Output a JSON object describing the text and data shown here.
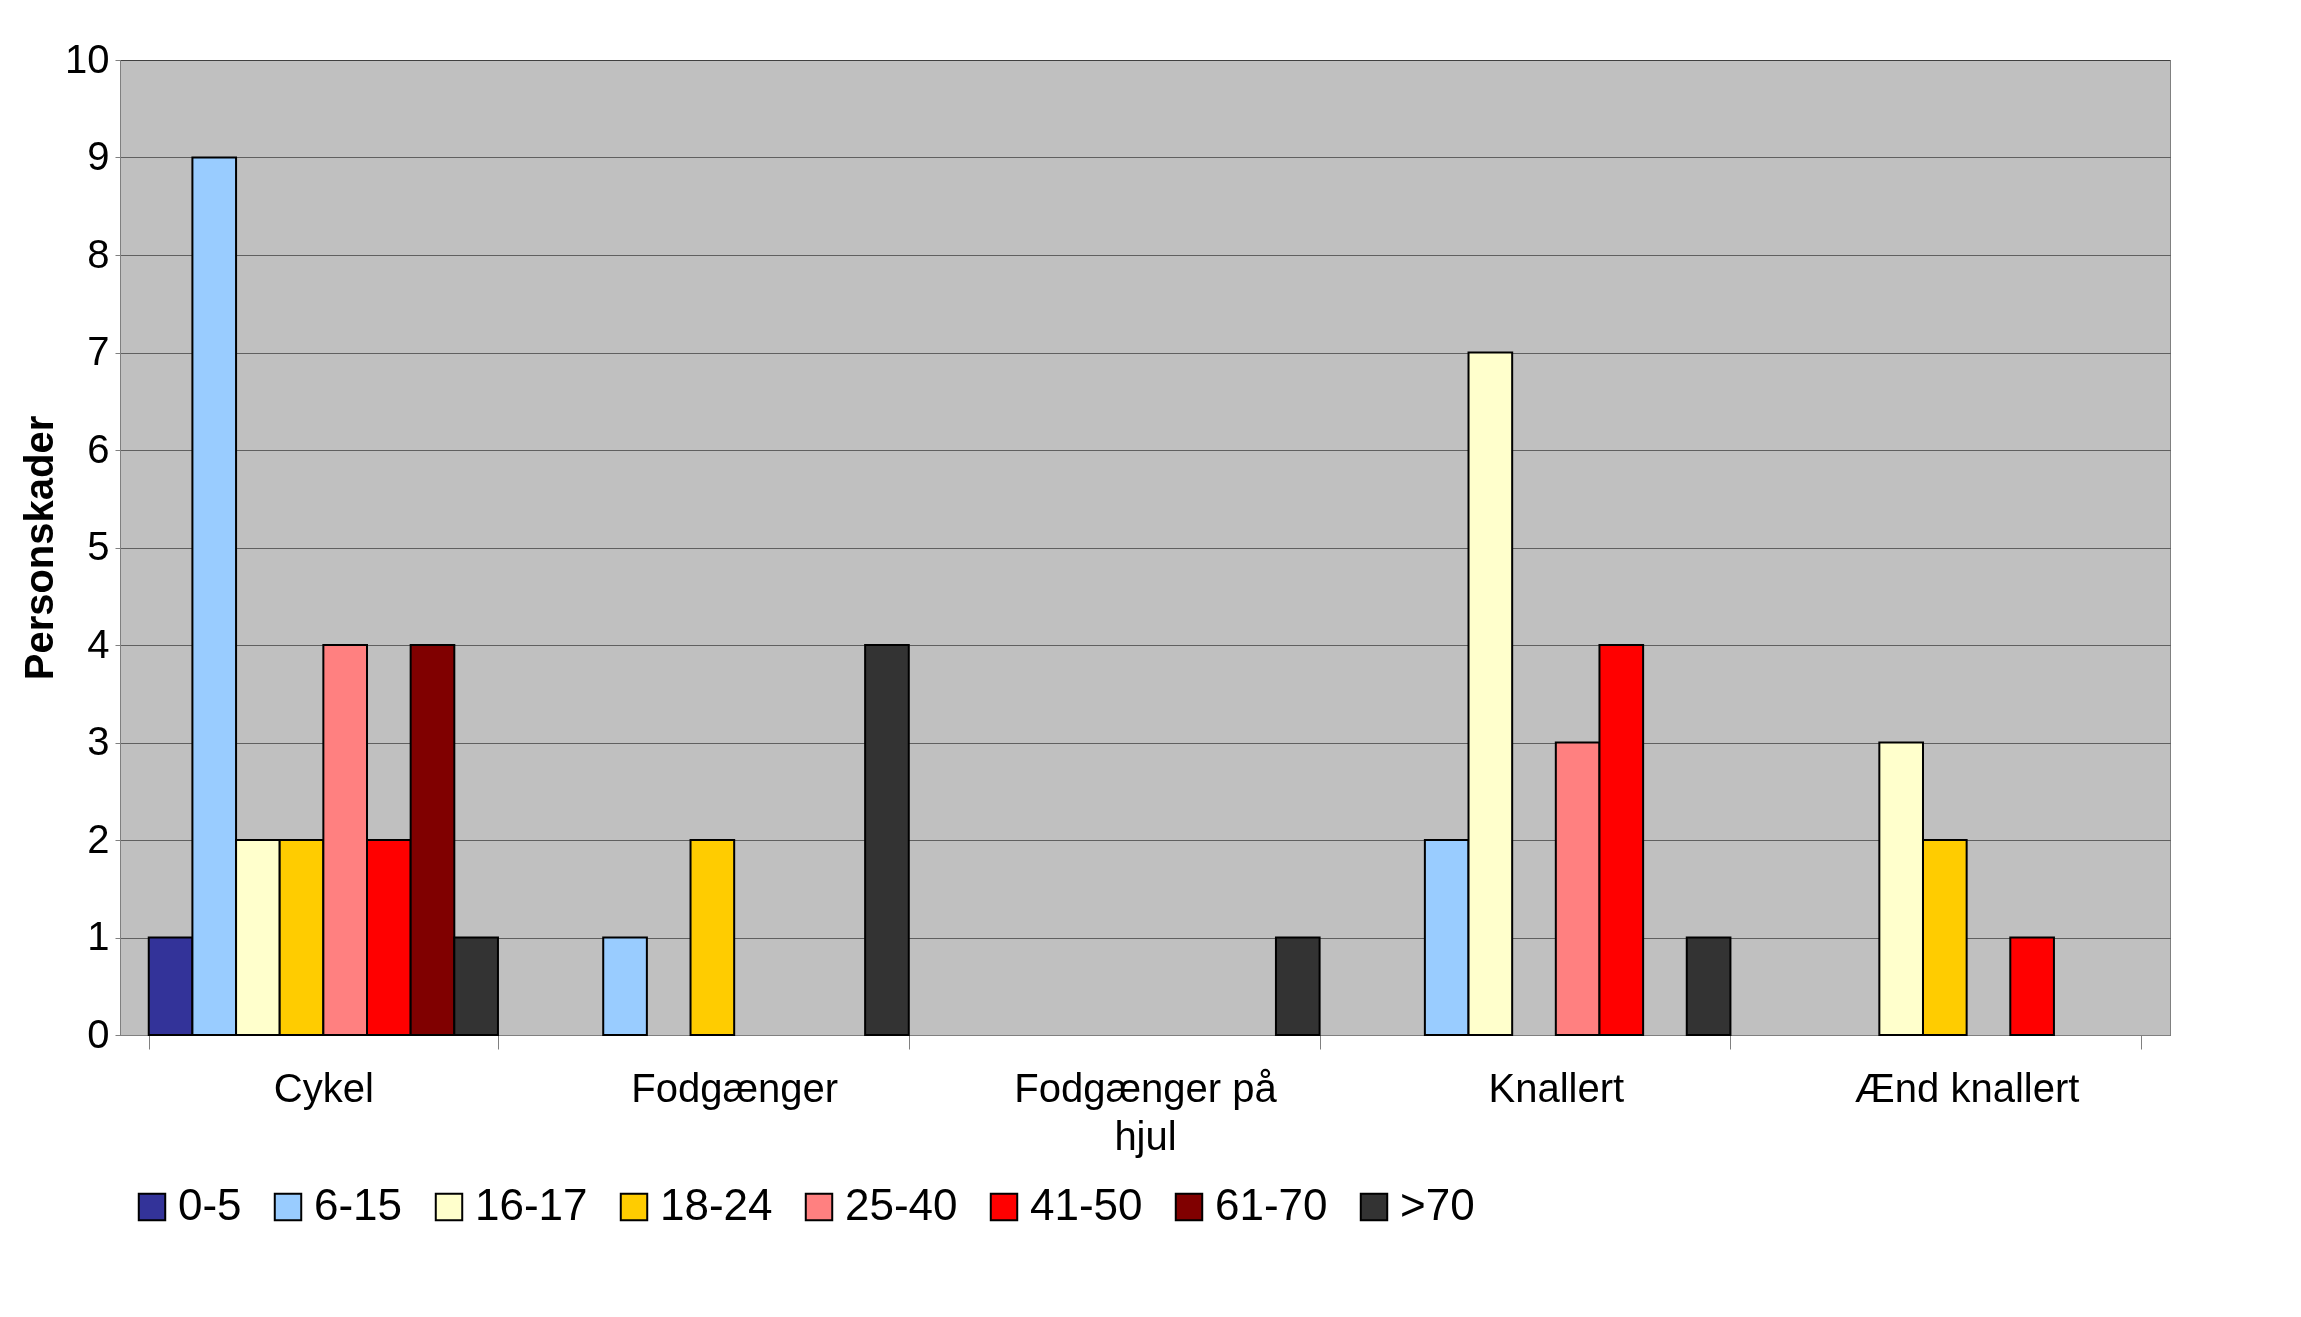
{
  "chart_data": {
    "type": "bar",
    "ylabel": "Personskader",
    "categories": [
      "Cykel",
      "Fodgænger",
      "Fodgænger på hjul",
      "Knallert",
      "Ænd knallert"
    ],
    "series": [
      {
        "name": "0-5",
        "color": "#333399",
        "values": [
          1,
          0,
          0,
          0,
          0
        ]
      },
      {
        "name": "6-15",
        "color": "#99ccff",
        "values": [
          9,
          1,
          0,
          2,
          0
        ]
      },
      {
        "name": "16-17",
        "color": "#ffffcc",
        "values": [
          2,
          0,
          0,
          7,
          3
        ]
      },
      {
        "name": "18-24",
        "color": "#ffcc00",
        "values": [
          2,
          2,
          0,
          0,
          2
        ]
      },
      {
        "name": "25-40",
        "color": "#ff8080",
        "values": [
          4,
          0,
          0,
          3,
          0
        ]
      },
      {
        "name": "41-50",
        "color": "#ff0000",
        "values": [
          2,
          0,
          0,
          4,
          1
        ]
      },
      {
        "name": "61-70",
        "color": "#800000",
        "values": [
          4,
          0,
          0,
          0,
          0
        ]
      },
      {
        "name": ">70",
        "color": "#333333",
        "values": [
          1,
          4,
          1,
          1,
          0
        ]
      }
    ],
    "ylim": [
      0,
      10
    ],
    "yticks": [
      0,
      1,
      2,
      3,
      4,
      5,
      6,
      7,
      8,
      9,
      10
    ],
    "grid": "y",
    "legend": "bottom"
  }
}
